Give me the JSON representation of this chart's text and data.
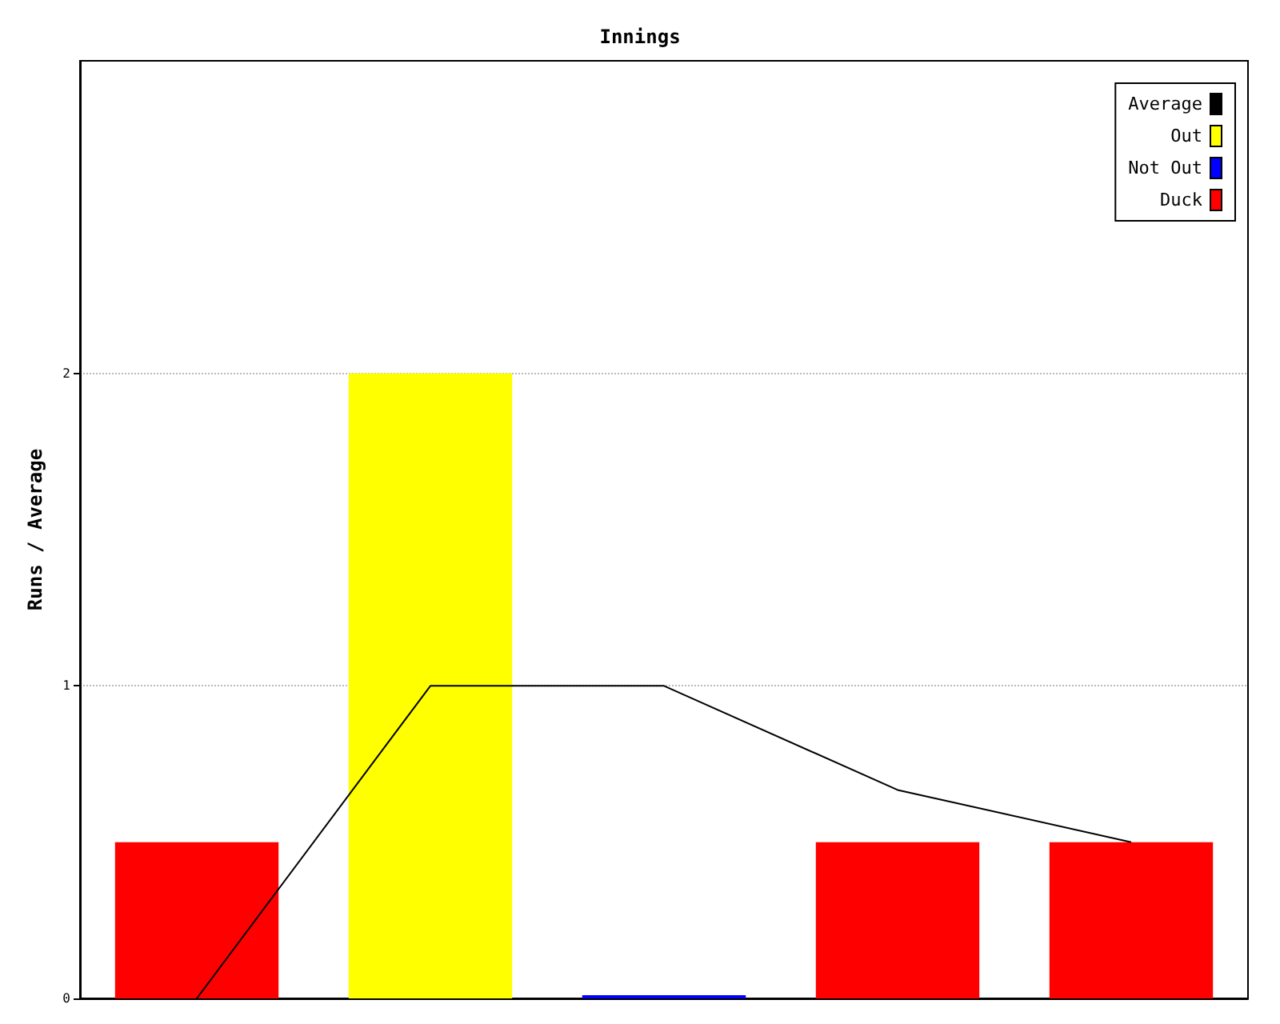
{
  "chart_data": {
    "type": "bar",
    "title": "Innings",
    "ylabel": "Runs / Average",
    "categories": [
      null,
      null,
      null,
      null,
      null
    ],
    "stacked": true,
    "series": [
      {
        "name": "Average",
        "type": "line",
        "color": "#000000",
        "values": [
          0,
          1,
          1,
          0.667,
          0.5
        ]
      },
      {
        "name": "Out",
        "color": "#ffff00",
        "values": [
          null,
          2,
          null,
          null,
          null
        ]
      },
      {
        "name": "Not Out",
        "color": "#0000ff",
        "values": [
          null,
          null,
          0.01,
          null,
          null
        ]
      },
      {
        "name": "Duck",
        "color": "#ff0000",
        "values": [
          0.5,
          null,
          null,
          0.5,
          0.5
        ]
      }
    ],
    "ylim": [
      0,
      3
    ],
    "yticks": [
      0,
      1,
      2
    ],
    "grid": "y",
    "legend": "top right",
    "marker": "none"
  }
}
